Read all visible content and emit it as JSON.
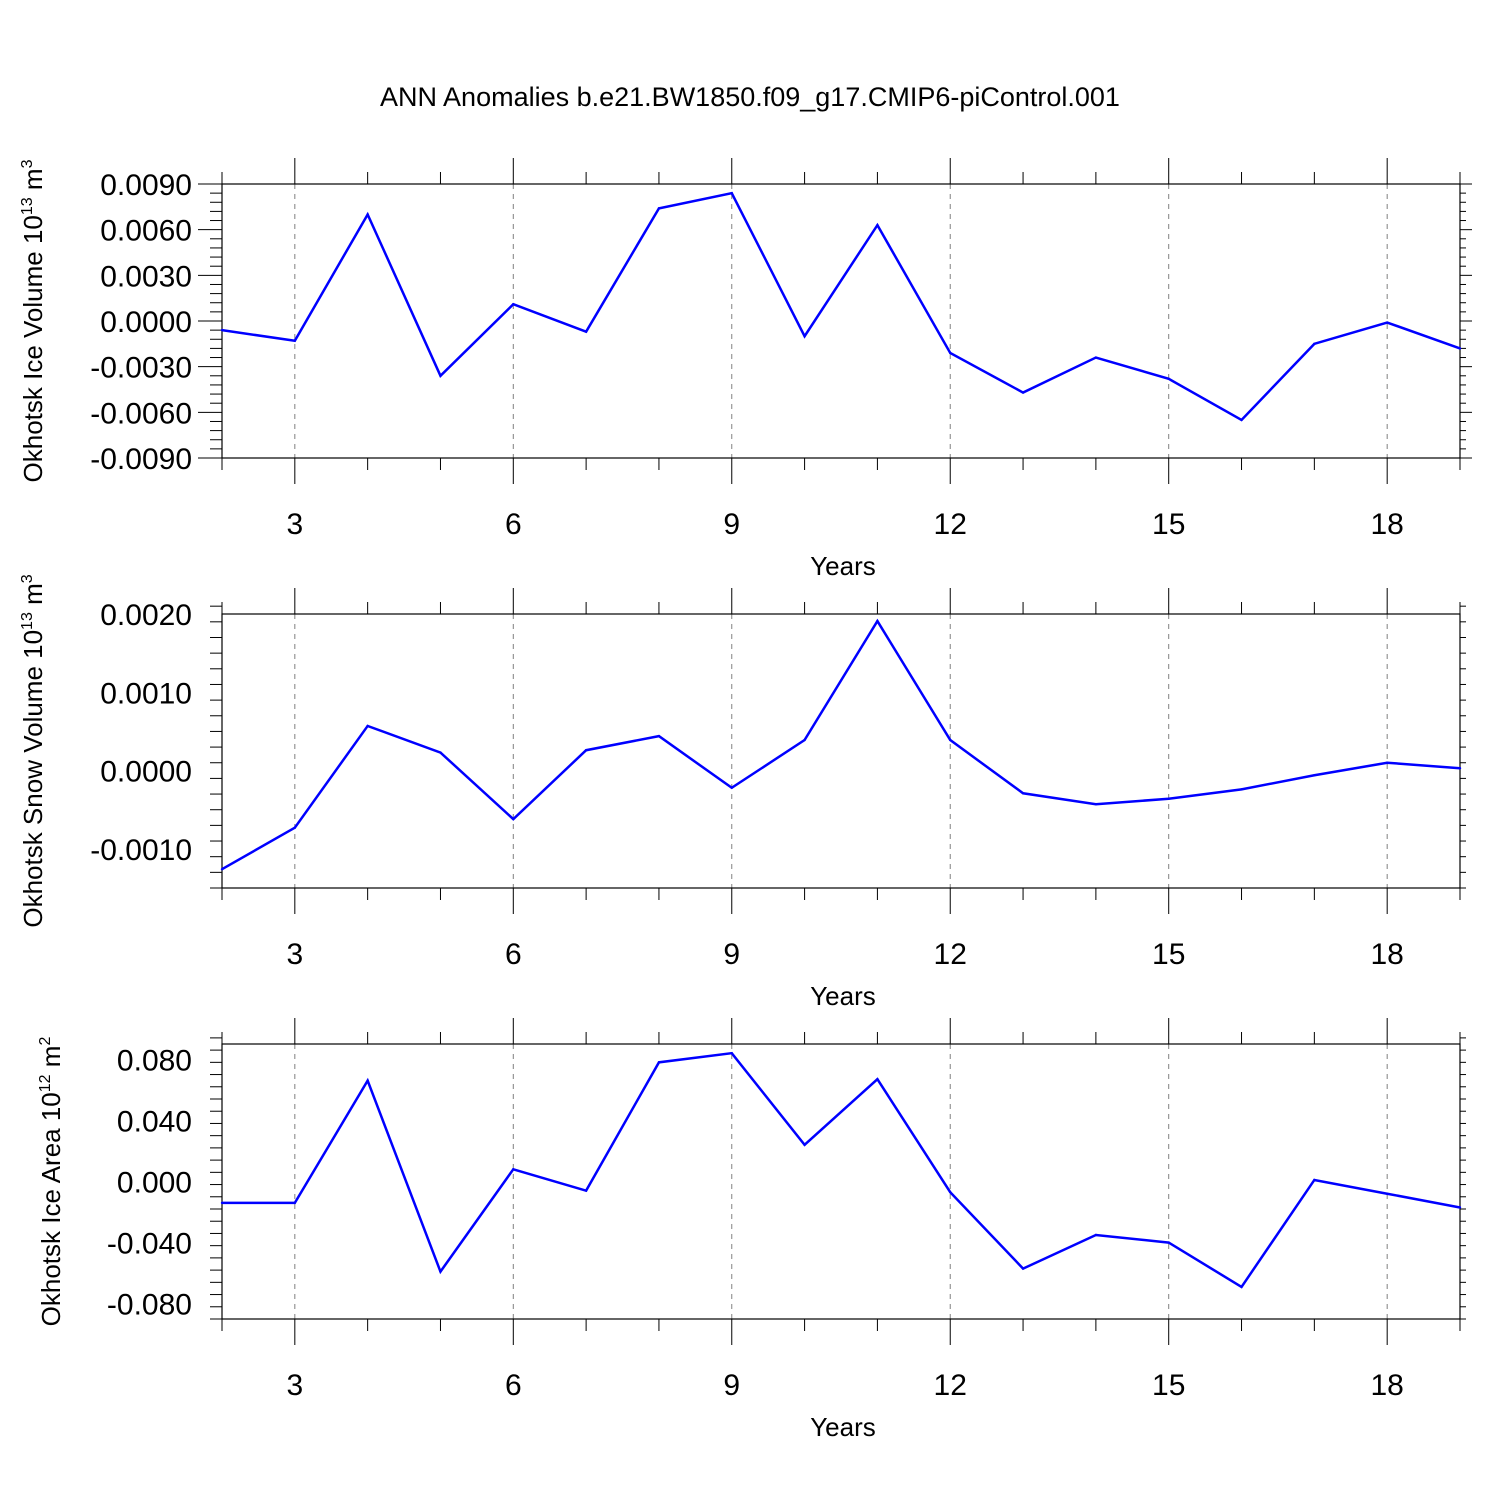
{
  "figure": {
    "title": "ANN Anomalies b.e21.BW1850.f09_g17.CMIP6-piControl.001"
  },
  "style": {
    "line_color": "#0000ff",
    "axis_color": "#000000",
    "grid_color": "#808080"
  },
  "chart_data": [
    {
      "type": "line",
      "xlabel": "Years",
      "ylabel": "Okhotsk Ice Volume 10",
      "ylabel_exp": "13",
      "ylabel_unit": " m",
      "ylabel_unit_exp": "3",
      "xlim": [
        2,
        19
      ],
      "ylim": [
        -0.009,
        0.009
      ],
      "x_ticks": [
        3,
        6,
        9,
        12,
        15,
        18
      ],
      "x_tick_labels": [
        "3",
        "6",
        "9",
        "12",
        "15",
        "18"
      ],
      "y_ticks": [
        -0.009,
        -0.006,
        -0.003,
        0.0,
        0.003,
        0.006,
        0.009
      ],
      "y_tick_labels": [
        "-0.0090",
        "-0.0060",
        "-0.0030",
        "0.0000",
        "0.0030",
        "0.0060",
        "0.0090"
      ],
      "x_grid": "dashed vertical at major ticks",
      "x": [
        2,
        3,
        4,
        5,
        6,
        7,
        8,
        9,
        10,
        11,
        12,
        13,
        14,
        15,
        16,
        17,
        18,
        19
      ],
      "series": [
        {
          "values": [
            -0.0006,
            -0.0013,
            0.007,
            -0.0036,
            0.0011,
            -0.0007,
            0.0074,
            0.0084,
            -0.001,
            0.0063,
            -0.0021,
            -0.0047,
            -0.0024,
            -0.0038,
            -0.0065,
            -0.0015,
            -0.0001,
            -0.0018
          ]
        }
      ]
    },
    {
      "type": "line",
      "xlabel": "Years",
      "ylabel": "Okhotsk Snow Volume 10",
      "ylabel_exp": "13",
      "ylabel_unit": " m",
      "ylabel_unit_exp": "3",
      "xlim": [
        2,
        19
      ],
      "ylim": [
        -0.0015,
        0.002
      ],
      "x_ticks": [
        3,
        6,
        9,
        12,
        15,
        18
      ],
      "x_tick_labels": [
        "3",
        "6",
        "9",
        "12",
        "15",
        "18"
      ],
      "y_ticks": [
        -0.001,
        0.0,
        0.001,
        0.002
      ],
      "y_tick_labels": [
        "-0.0010",
        "0.0000",
        "0.0010",
        "0.0020"
      ],
      "x_grid": "dashed vertical at major ticks",
      "x": [
        2,
        3,
        4,
        5,
        6,
        7,
        8,
        9,
        10,
        11,
        12,
        13,
        14,
        15,
        16,
        17,
        18,
        19
      ],
      "series": [
        {
          "values": [
            -0.00126,
            -0.00073,
            0.00057,
            0.00023,
            -0.00062,
            0.00026,
            0.00044,
            -0.00022,
            0.00039,
            0.00191,
            0.00039,
            -0.00029,
            -0.00043,
            -0.00036,
            -0.00024,
            -6e-05,
            0.0001,
            3e-05
          ]
        }
      ]
    },
    {
      "type": "line",
      "xlabel": "Years",
      "ylabel": "Okhotsk Ice Area 10",
      "ylabel_exp": "12",
      "ylabel_unit": " m",
      "ylabel_unit_exp": "2",
      "xlim": [
        2,
        19
      ],
      "ylim": [
        -0.09,
        0.09
      ],
      "x_ticks": [
        3,
        6,
        9,
        12,
        15,
        18
      ],
      "x_tick_labels": [
        "3",
        "6",
        "9",
        "12",
        "15",
        "18"
      ],
      "y_ticks": [
        -0.08,
        -0.04,
        0.0,
        0.04,
        0.08
      ],
      "y_tick_labels": [
        "-0.080",
        "-0.040",
        "0.000",
        "0.040",
        "0.080"
      ],
      "x_grid": "dashed vertical at major ticks",
      "x": [
        2,
        3,
        4,
        5,
        6,
        7,
        8,
        9,
        10,
        11,
        12,
        13,
        14,
        15,
        16,
        17,
        18,
        19
      ],
      "series": [
        {
          "values": [
            -0.014,
            -0.014,
            0.066,
            -0.059,
            0.008,
            -0.006,
            0.078,
            0.084,
            0.024,
            0.067,
            -0.007,
            -0.057,
            -0.035,
            -0.04,
            -0.069,
            0.001,
            -0.008,
            -0.017
          ]
        }
      ]
    }
  ]
}
